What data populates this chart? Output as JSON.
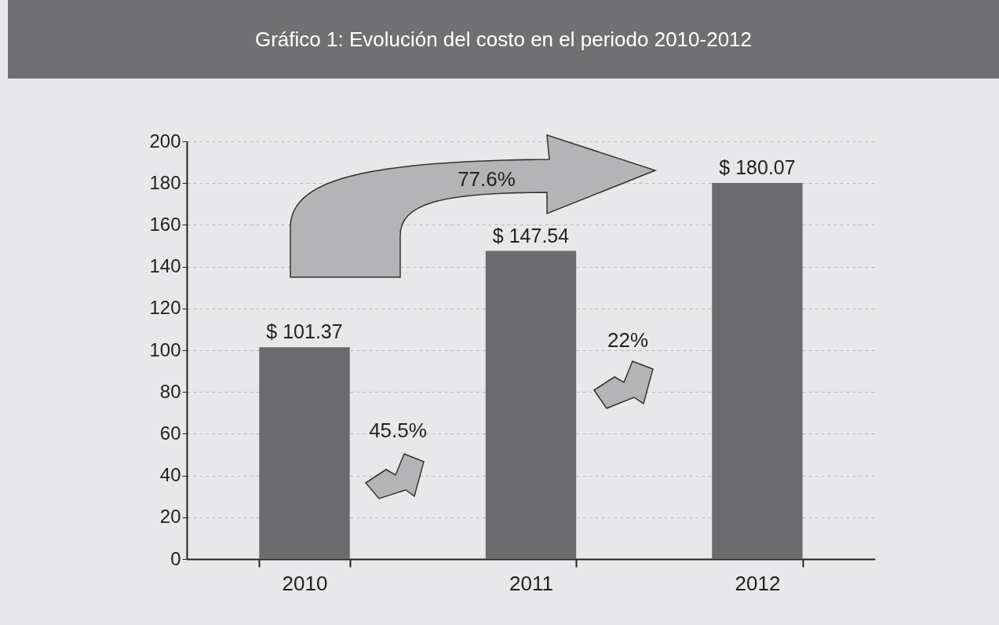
{
  "chart_data": {
    "type": "bar",
    "title": "Gráfico 1: Evolución del costo en el periodo 2010-2012",
    "categories": [
      "2010",
      "2011",
      "2012"
    ],
    "values": [
      101.37,
      147.54,
      180.07
    ],
    "value_labels": [
      "$ 101.37",
      "$ 147.54",
      "$ 180.07"
    ],
    "color": "#6b6b6e",
    "ylim": [
      0,
      200
    ],
    "yticks": [
      0,
      20,
      40,
      60,
      80,
      100,
      120,
      140,
      160,
      180,
      200
    ],
    "grid": "y",
    "annotations": [
      "77.6%",
      "45.5%",
      "22%"
    ]
  }
}
